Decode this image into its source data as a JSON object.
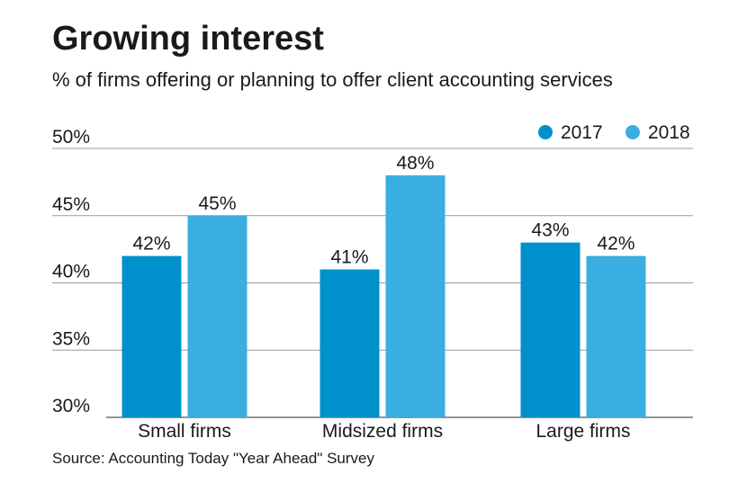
{
  "title": "Growing interest",
  "subtitle": "% of firms offering or planning to offer client accounting services",
  "source": "Source: Accounting Today \"Year Ahead\" Survey",
  "colors": {
    "series_2017": "#0090cc",
    "series_2018": "#3aaee0",
    "grid": "#9a9a9a",
    "axis": "#555555"
  },
  "chart_data": {
    "type": "bar",
    "categories": [
      "Small firms",
      "Midsized firms",
      "Large firms"
    ],
    "series": [
      {
        "name": "2017",
        "values": [
          42,
          41,
          43
        ],
        "labels": [
          "42%",
          "41%",
          "43%"
        ]
      },
      {
        "name": "2018",
        "values": [
          45,
          48,
          42
        ],
        "labels": [
          "45%",
          "48%",
          "42%"
        ]
      }
    ],
    "ylim": [
      30,
      50
    ],
    "yticks": [
      30,
      35,
      40,
      45,
      50
    ],
    "ytick_labels": [
      "30%",
      "35%",
      "40%",
      "45%",
      "50%"
    ],
    "grid": true,
    "legend_position": "top-right",
    "xlabel": "",
    "ylabel": ""
  }
}
